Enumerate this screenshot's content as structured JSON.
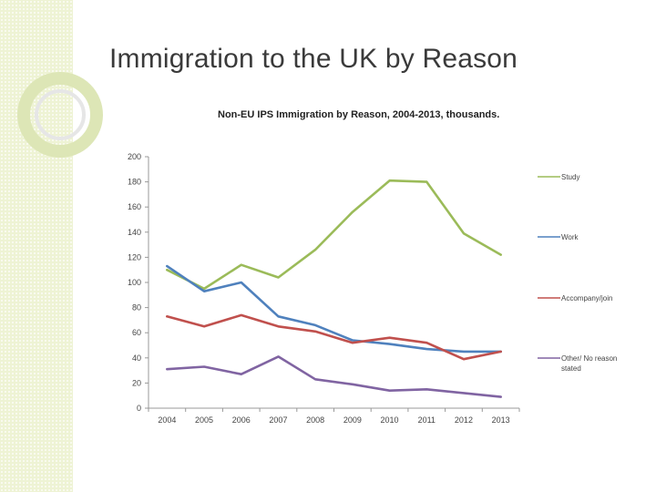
{
  "slide": {
    "title": "Immigration to the UK by Reason"
  },
  "colors": {
    "side_strip": "#eef3d4",
    "ring_outer": "#dde6b6",
    "ring_inner": "#e6e6e6"
  },
  "chart_data": {
    "type": "line",
    "title": "Non-EU IPS Immigration by Reason, 2004-2013, thousands.",
    "xlabel": "",
    "ylabel": "",
    "categories": [
      "2004",
      "2005",
      "2006",
      "2007",
      "2008",
      "2009",
      "2010",
      "2011",
      "2012",
      "2013"
    ],
    "ylim": [
      0,
      200
    ],
    "yticks": [
      0,
      20,
      40,
      60,
      80,
      100,
      120,
      140,
      160,
      180,
      200
    ],
    "grid": false,
    "legend": "right",
    "series": [
      {
        "name": "Study",
        "color": "#9bbb59",
        "values": [
          110,
          95,
          114,
          104,
          126,
          156,
          181,
          180,
          139,
          122
        ]
      },
      {
        "name": "Work",
        "color": "#4f81bd",
        "values": [
          113,
          93,
          100,
          73,
          66,
          54,
          51,
          47,
          45,
          45
        ]
      },
      {
        "name": "Accompany/join",
        "color": "#c0504d",
        "values": [
          73,
          65,
          74,
          65,
          61,
          52,
          56,
          52,
          39,
          45
        ]
      },
      {
        "name": "Other/ No reason stated",
        "color": "#8064a2",
        "values": [
          31,
          33,
          27,
          41,
          23,
          19,
          14,
          15,
          12,
          9
        ]
      }
    ]
  }
}
